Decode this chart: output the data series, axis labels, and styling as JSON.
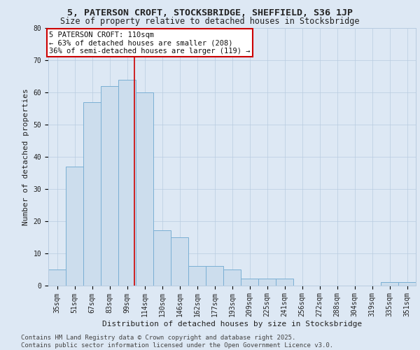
{
  "title": "5, PATERSON CROFT, STOCKSBRIDGE, SHEFFIELD, S36 1JP",
  "subtitle": "Size of property relative to detached houses in Stocksbridge",
  "xlabel": "Distribution of detached houses by size in Stocksbridge",
  "ylabel": "Number of detached properties",
  "categories": [
    "35sqm",
    "51sqm",
    "67sqm",
    "83sqm",
    "99sqm",
    "114sqm",
    "130sqm",
    "146sqm",
    "162sqm",
    "177sqm",
    "193sqm",
    "209sqm",
    "225sqm",
    "241sqm",
    "256sqm",
    "272sqm",
    "288sqm",
    "304sqm",
    "319sqm",
    "335sqm",
    "351sqm"
  ],
  "values": [
    5,
    37,
    57,
    62,
    64,
    60,
    17,
    15,
    6,
    6,
    5,
    2,
    2,
    2,
    0,
    0,
    0,
    0,
    0,
    1,
    1
  ],
  "bar_color": "#ccdded",
  "bar_edge_color": "#7aafd4",
  "vline_x": 4.42,
  "vline_color": "#cc0000",
  "annotation_text": "5 PATERSON CROFT: 110sqm\n← 63% of detached houses are smaller (208)\n36% of semi-detached houses are larger (119) →",
  "annotation_box_color": "#ffffff",
  "annotation_box_edge": "#cc0000",
  "ylim": [
    0,
    80
  ],
  "yticks": [
    0,
    10,
    20,
    30,
    40,
    50,
    60,
    70,
    80
  ],
  "bg_color": "#dde8f4",
  "plot_bg_color": "#dde8f4",
  "footer_text": "Contains HM Land Registry data © Crown copyright and database right 2025.\nContains public sector information licensed under the Open Government Licence v3.0.",
  "title_fontsize": 9.5,
  "subtitle_fontsize": 8.5,
  "axis_label_fontsize": 8,
  "tick_fontsize": 7,
  "annotation_fontsize": 7.5,
  "footer_fontsize": 6.5
}
